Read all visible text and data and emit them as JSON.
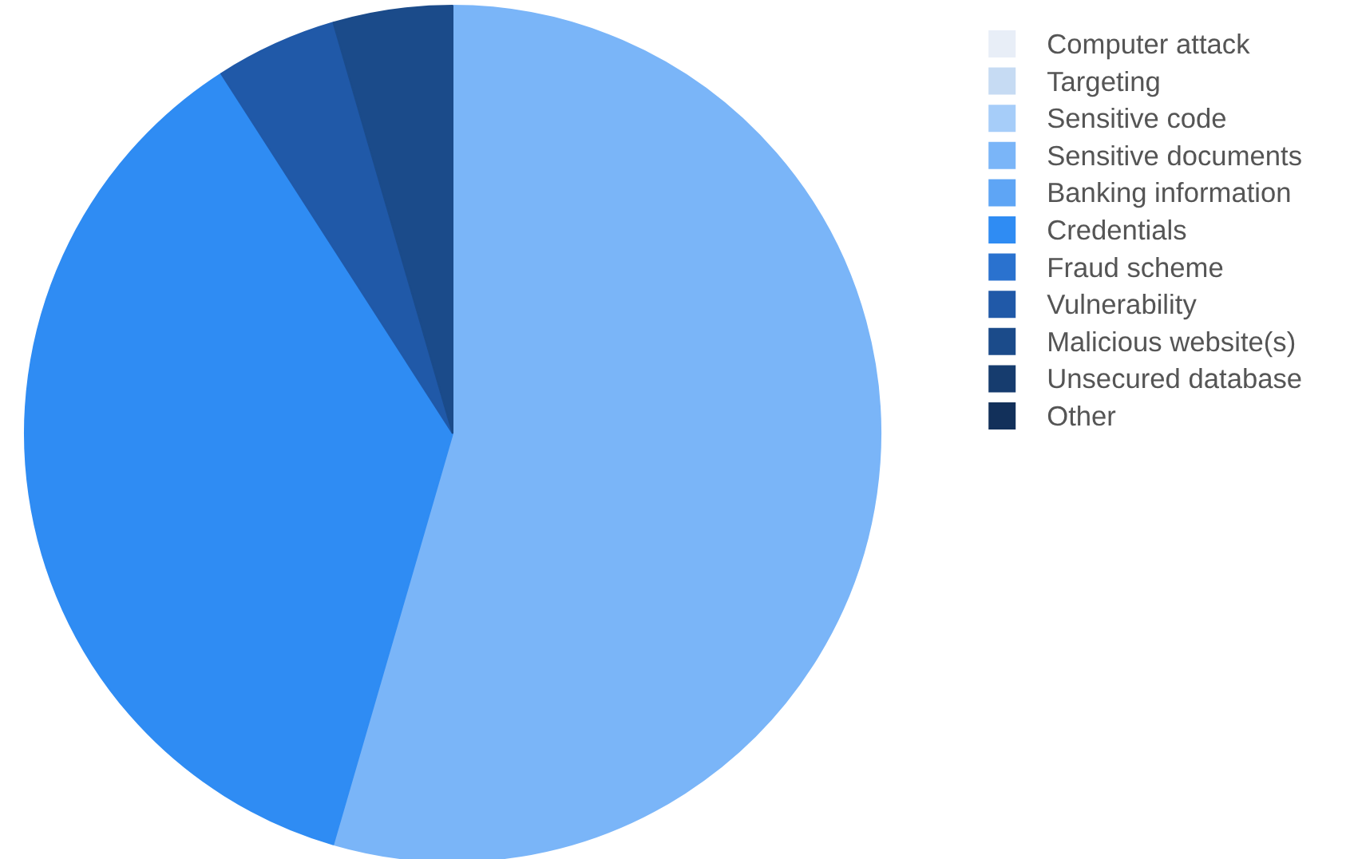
{
  "chart_data": {
    "type": "pie",
    "categories": [
      "Computer attack",
      "Targeting",
      "Sensitive code",
      "Sensitive documents",
      "Banking information",
      "Credentials",
      "Fraud scheme",
      "Vulnerability",
      "Malicious website(s)",
      "Unsecured database",
      "Other"
    ],
    "values": [
      0,
      0,
      0,
      54.5,
      0,
      36.4,
      0,
      4.6,
      4.5,
      0,
      0
    ],
    "colors": [
      "#e8eef7",
      "#c6dbf3",
      "#a6cdf9",
      "#7ab5f8",
      "#5ea5f5",
      "#2f8cf3",
      "#2a72cf",
      "#2059a8",
      "#1b4b8a",
      "#163c6e",
      "#12305a"
    ],
    "legend": "right"
  }
}
